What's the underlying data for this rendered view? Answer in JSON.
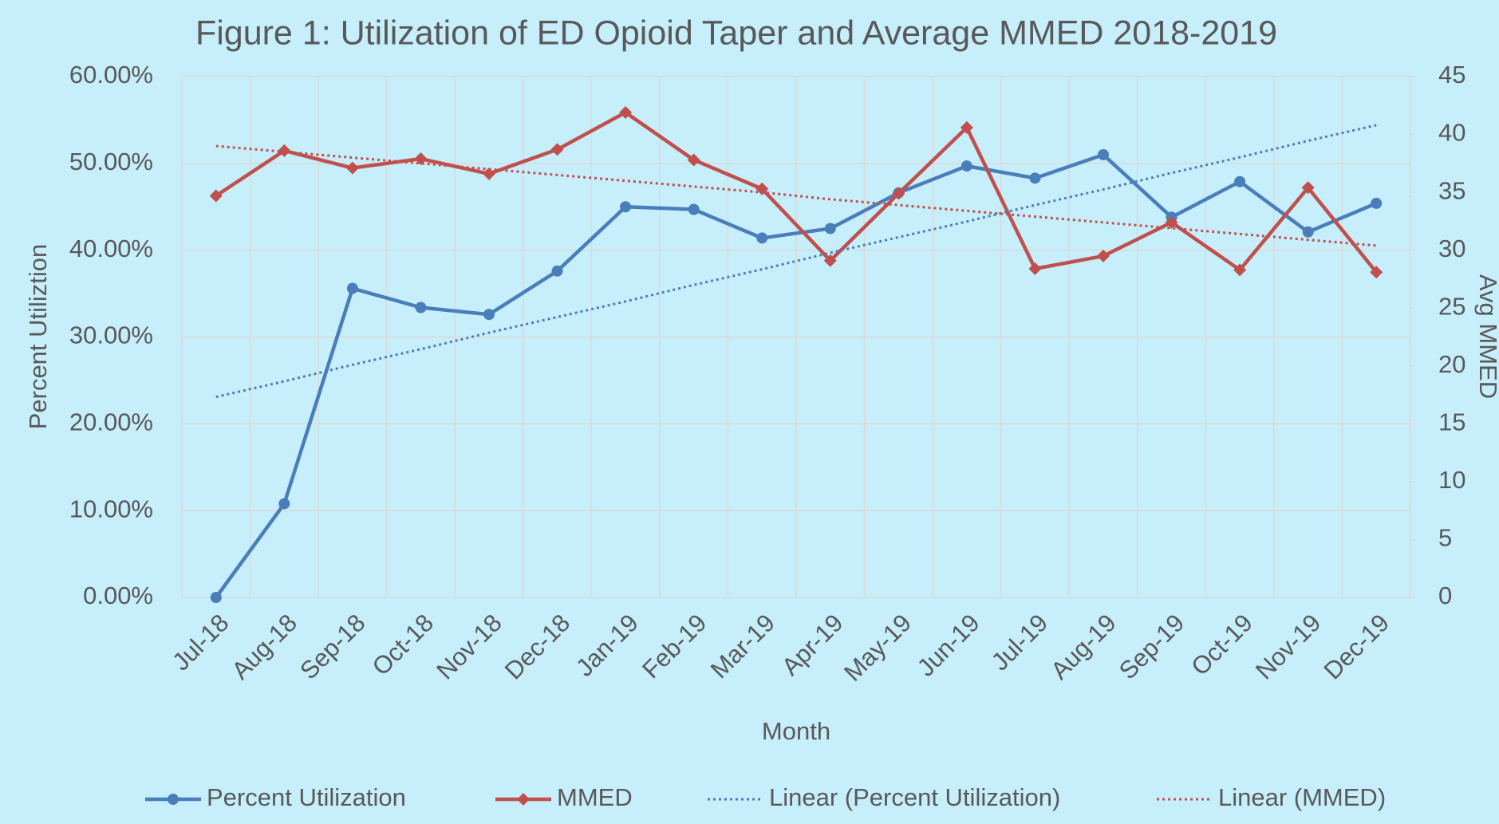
{
  "chart_data": {
    "type": "line",
    "title": "Figure 1: Utilization of ED Opioid Taper and Average MMED 2018-2019",
    "x_label": "Month",
    "y_label": "Percent Utiliztion",
    "y2_label": "Avg MMED",
    "categories": [
      "Jul-18",
      "Aug-18",
      "Sep-18",
      "Oct-18",
      "Nov-18",
      "Dec-18",
      "Jan-19",
      "Feb-19",
      "Mar-19",
      "Apr-19",
      "May-19",
      "Jun-19",
      "Jul-19",
      "Aug-19",
      "Sep-19",
      "Oct-19",
      "Nov-19",
      "Dec-19"
    ],
    "series": [
      {
        "name": "Percent Utilization",
        "color": "#4a7ebb",
        "marker": "circle",
        "values": [
          0,
          10.8,
          35.6,
          33.4,
          32.6,
          37.6,
          45.0,
          44.7,
          41.4,
          42.5,
          46.6,
          49.7,
          48.3,
          51.0,
          43.8,
          47.9,
          42.1,
          45.4
        ]
      },
      {
        "name": "MMED",
        "color": "#c0504d",
        "marker": "diamond",
        "axis": "y2",
        "values": [
          34.7,
          38.6,
          37.1,
          37.9,
          36.6,
          38.7,
          41.9,
          37.8,
          35.3,
          29.1,
          34.9,
          40.6,
          28.4,
          29.5,
          32.4,
          28.3,
          35.4,
          28.1
        ]
      },
      {
        "name": "Linear (Percent Utilization)",
        "color": "#4a7ebb",
        "dotted": true,
        "values": [
          23.1,
          24.9,
          26.8,
          28.6,
          30.5,
          32.3,
          34.1,
          36.0,
          37.8,
          39.7,
          41.5,
          43.3,
          45.2,
          47.0,
          48.9,
          50.7,
          52.6,
          54.4
        ]
      },
      {
        "name": "Linear (MMED)",
        "color": "#c0504d",
        "dotted": true,
        "axis": "y2",
        "values": [
          39.0,
          38.5,
          38.0,
          37.5,
          37.0,
          36.5,
          36.0,
          35.5,
          35.0,
          34.4,
          33.9,
          33.4,
          32.9,
          32.4,
          31.9,
          31.4,
          30.9,
          30.4
        ]
      }
    ],
    "ylim": [
      0,
      60
    ],
    "yticks": [
      {
        "value": 0,
        "label": "0.00%"
      },
      {
        "value": 10,
        "label": "10.00%"
      },
      {
        "value": 20,
        "label": "20.00%"
      },
      {
        "value": 30,
        "label": "30.00%"
      },
      {
        "value": 40,
        "label": "40.00%"
      },
      {
        "value": 50,
        "label": "50.00%"
      },
      {
        "value": 60,
        "label": "60.00%"
      }
    ],
    "y2lim": [
      0,
      45
    ],
    "y2ticks": [
      0,
      5,
      10,
      15,
      20,
      25,
      30,
      35,
      40,
      45
    ],
    "grid": true,
    "legend": "bottom"
  }
}
